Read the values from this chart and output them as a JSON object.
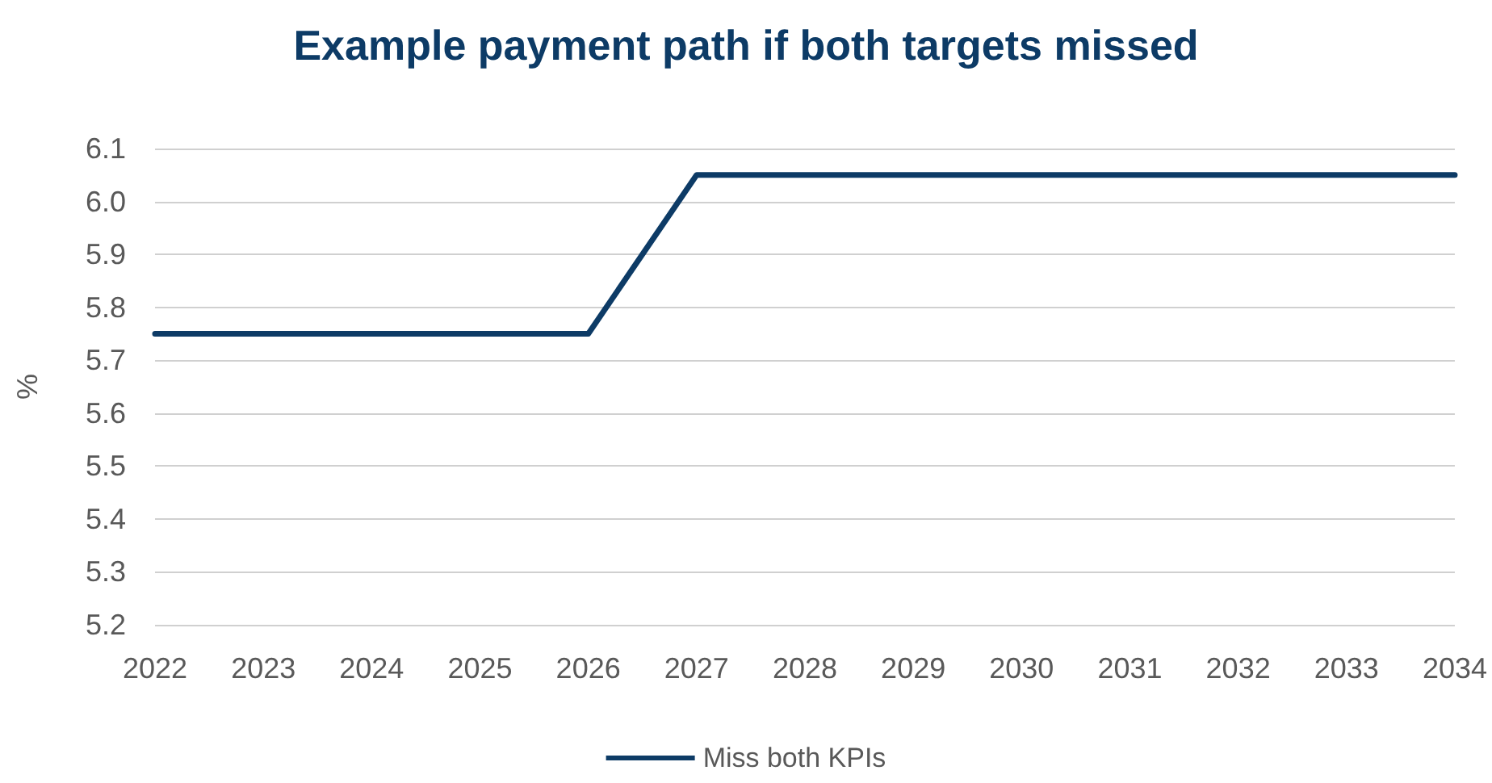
{
  "chart_data": {
    "type": "line",
    "title": "Example payment path if both targets missed",
    "ylabel": "%",
    "categories": [
      "2022",
      "2023",
      "2024",
      "2025",
      "2026",
      "2027",
      "2028",
      "2029",
      "2030",
      "2031",
      "2032",
      "2033",
      "2034"
    ],
    "series": [
      {
        "name": "Miss both KPIs",
        "color": "#0d3b66",
        "values": [
          5.75,
          5.75,
          5.75,
          5.75,
          5.75,
          6.05,
          6.05,
          6.05,
          6.05,
          6.05,
          6.05,
          6.05,
          6.05
        ]
      }
    ],
    "ylim": [
      5.2,
      6.1
    ],
    "yticks": [
      5.2,
      5.3,
      5.4,
      5.5,
      5.6,
      5.7,
      5.8,
      5.9,
      {
        "value": 6,
        "label": "6.0"
      },
      6.1
    ],
    "grid": "y",
    "legend": "bottom",
    "marker": "none",
    "line_style": "solid"
  }
}
